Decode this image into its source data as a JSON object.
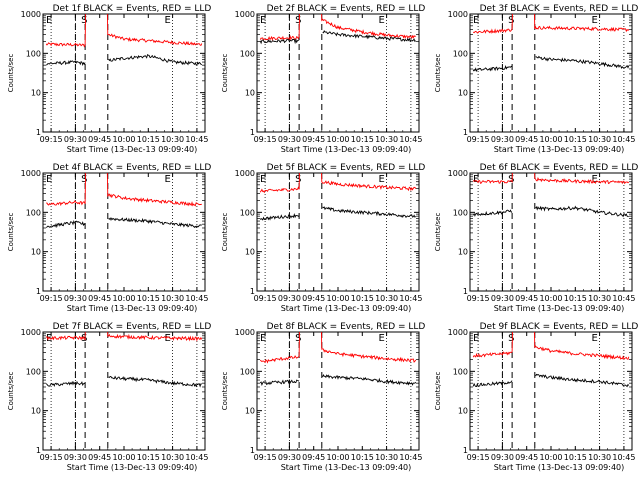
{
  "chart_data": {
    "type": "line",
    "common": {
      "xticks": [
        "09:15",
        "09:30",
        "09:45",
        "10:00",
        "10:15",
        "10:30",
        "10:45"
      ],
      "xlabel": "Start Time (13-Dec-13 09:09:40)",
      "ylabel": "Counts/sec",
      "yscale": "log",
      "ylim": [
        1,
        1000
      ],
      "yticks": [
        "1",
        "10",
        "100",
        "1000"
      ],
      "marker_labels": [
        "E",
        "S",
        "E"
      ],
      "series_colors": {
        "events": "#000000",
        "lld": "#ff0000"
      }
    },
    "panels": [
      {
        "title": "Det 1f BLACK = Events, RED = LLD",
        "events_level": 55,
        "lld_level": 160,
        "x": [
          "09:15",
          "09:30",
          "09:36",
          "09:50",
          "10:00",
          "10:15",
          "10:30",
          "10:45"
        ],
        "lld": [
          170,
          165,
          160,
          300,
          230,
          210,
          190,
          170
        ],
        "events": [
          55,
          60,
          55,
          65,
          75,
          85,
          60,
          55
        ]
      },
      {
        "title": "Det 2f BLACK = Events, RED = LLD",
        "events_level": 180,
        "lld_level": 240,
        "x": [
          "09:15",
          "09:30",
          "09:40",
          "09:50",
          "10:00",
          "10:15",
          "10:30",
          "10:45"
        ],
        "lld": [
          240,
          250,
          240,
          700,
          450,
          350,
          290,
          260
        ],
        "events": [
          200,
          210,
          200,
          350,
          300,
          270,
          240,
          220
        ]
      },
      {
        "title": "Det 3f BLACK = Events, RED = LLD",
        "events_level": 40,
        "lld_level": 350,
        "x": [
          "09:15",
          "09:30",
          "09:36",
          "09:50",
          "10:00",
          "10:15",
          "10:30",
          "10:45"
        ],
        "lld": [
          350,
          380,
          400,
          450,
          440,
          430,
          420,
          400
        ],
        "events": [
          38,
          42,
          45,
          80,
          70,
          65,
          55,
          45
        ]
      },
      {
        "title": "Det 4f BLACK = Events, RED = LLD",
        "events_level": 45,
        "lld_level": 150,
        "x": [
          "09:15",
          "09:30",
          "09:36",
          "09:50",
          "10:00",
          "10:15",
          "10:30",
          "10:45"
        ],
        "lld": [
          160,
          180,
          170,
          280,
          230,
          200,
          180,
          160
        ],
        "events": [
          45,
          55,
          50,
          70,
          65,
          60,
          50,
          45
        ]
      },
      {
        "title": "Det 5f BLACK = Events, RED = LLD",
        "events_level": 70,
        "lld_level": 350,
        "x": [
          "09:15",
          "09:30",
          "09:36",
          "09:50",
          "10:00",
          "10:15",
          "10:30",
          "10:45"
        ],
        "lld": [
          350,
          380,
          400,
          600,
          520,
          470,
          430,
          400
        ],
        "events": [
          70,
          80,
          85,
          130,
          110,
          100,
          90,
          80
        ]
      },
      {
        "title": "Det 6f BLACK = Events, RED = LLD",
        "events_level": 85,
        "lld_level": 600,
        "x": [
          "09:15",
          "09:30",
          "09:36",
          "09:50",
          "10:00",
          "10:15",
          "10:30",
          "10:45"
        ],
        "lld": [
          600,
          600,
          600,
          700,
          650,
          620,
          600,
          580
        ],
        "events": [
          90,
          100,
          110,
          130,
          120,
          130,
          100,
          85
        ]
      },
      {
        "title": "Det 7f BLACK = Events, RED = LLD",
        "events_level": 45,
        "lld_level": 700,
        "x": [
          "09:15",
          "09:30",
          "09:36",
          "09:50",
          "10:00",
          "10:15",
          "10:30",
          "10:45"
        ],
        "lld": [
          700,
          720,
          700,
          800,
          760,
          720,
          700,
          680
        ],
        "events": [
          45,
          50,
          48,
          70,
          65,
          60,
          50,
          45
        ]
      },
      {
        "title": "Det 8f BLACK = Events, RED = LLD",
        "events_level": 50,
        "lld_level": 170,
        "x": [
          "09:15",
          "09:30",
          "09:36",
          "09:50",
          "10:00",
          "10:15",
          "10:30",
          "10:45"
        ],
        "lld": [
          180,
          220,
          230,
          350,
          280,
          240,
          210,
          190
        ],
        "events": [
          50,
          55,
          55,
          75,
          70,
          65,
          55,
          50
        ]
      },
      {
        "title": "Det 9f BLACK = Events, RED = LLD",
        "events_level": 50,
        "lld_level": 250,
        "x": [
          "09:15",
          "09:30",
          "09:36",
          "09:50",
          "10:00",
          "10:15",
          "10:30",
          "10:45"
        ],
        "lld": [
          250,
          280,
          300,
          420,
          330,
          280,
          250,
          220
        ],
        "events": [
          45,
          50,
          55,
          80,
          70,
          60,
          55,
          45
        ]
      }
    ]
  }
}
